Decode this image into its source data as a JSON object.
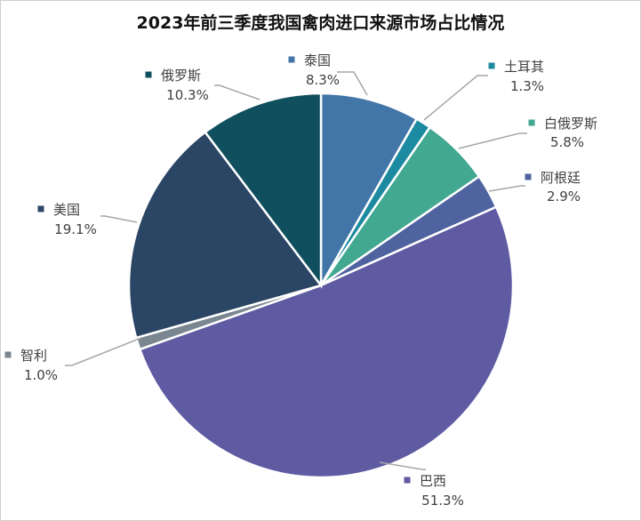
{
  "chart_data": {
    "type": "pie",
    "title": "2023年前三季度我国禽肉进口来源市场占比情况",
    "start_angle": "12 o'clock",
    "direction": "clockwise",
    "slices": [
      {
        "label": "泰国",
        "value": 8.3,
        "display": "8.3%",
        "color": "#4275a8"
      },
      {
        "label": "土耳其",
        "value": 1.3,
        "display": "1.3%",
        "color": "#1c8aa0"
      },
      {
        "label": "白俄罗斯",
        "value": 5.8,
        "display": "5.8%",
        "color": "#42a892"
      },
      {
        "label": "阿根廷",
        "value": 2.9,
        "display": "2.9%",
        "color": "#4f63a0"
      },
      {
        "label": "巴西",
        "value": 51.3,
        "display": "51.3%",
        "color": "#5e5ba3"
      },
      {
        "label": "智利",
        "value": 1.0,
        "display": "1.0%",
        "color": "#7a8690"
      },
      {
        "label": "美国",
        "value": 19.1,
        "display": "19.1%",
        "color": "#2b4565"
      },
      {
        "label": "俄罗斯",
        "value": 10.3,
        "display": "10.3%",
        "color": "#0f4f5e"
      }
    ]
  }
}
